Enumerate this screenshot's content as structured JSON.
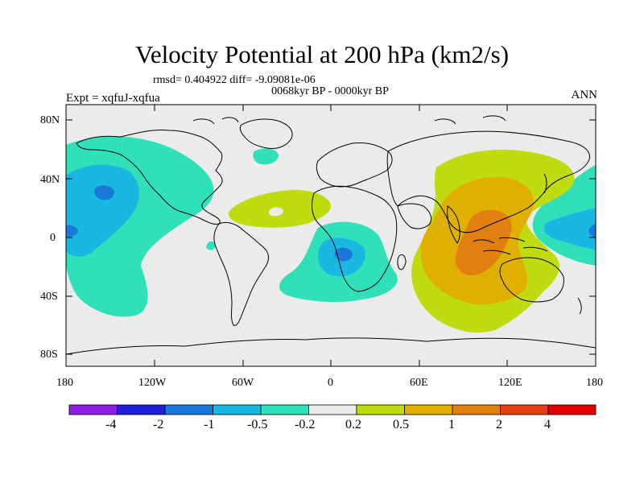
{
  "title": "Velocity Potential at 200 hPa (km2/s)",
  "stats_line": "rmsd= 0.404922 diff= -9.09081e-06",
  "subtitle": "0068kyr BP - 0000kyr BP",
  "experiment": "Expt = xqfuJ-xqfua",
  "season": "ANN",
  "lat_ticks": [
    "80N",
    "40N",
    "0",
    "40S",
    "80S"
  ],
  "lon_ticks": [
    "180",
    "120W",
    "60W",
    "0",
    "60E",
    "120E",
    "180"
  ],
  "colorbar": {
    "colors": [
      "#8a1fe0",
      "#2020d8",
      "#1a78d8",
      "#18b8e0",
      "#30e0b8",
      "#ebebeb",
      "#c0dc10",
      "#e0b000",
      "#e08010",
      "#e04010",
      "#e00000"
    ],
    "labels": [
      "-4",
      "-2",
      "-1",
      "-0.5",
      "-0.2",
      "0.2",
      "0.5",
      "1",
      "2",
      "4"
    ]
  },
  "map_colors": {
    "ocean": "#ebebeb",
    "coast": "#000000"
  }
}
